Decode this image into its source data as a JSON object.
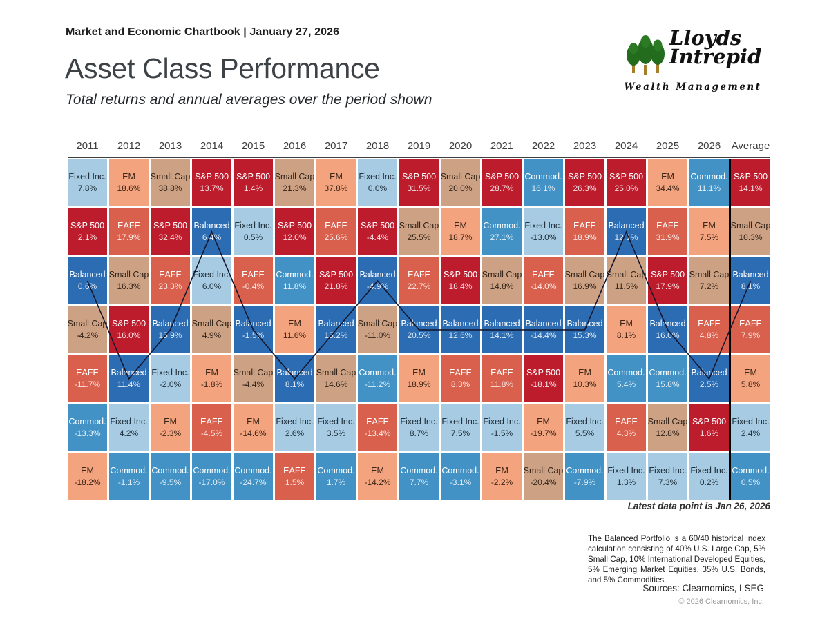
{
  "header": {
    "chartbook": "Market and Economic Chartbook | January 27, 2026"
  },
  "logo": {
    "name_line1": "Lloyds",
    "name_line2": "Intrepid",
    "tagline": "Wealth Management"
  },
  "title": "Asset Class Performance",
  "subtitle": "Total returns and annual averages over the period shown",
  "chart_data": {
    "type": "table",
    "title": "Asset Class Performance",
    "subtitle": "Total returns and annual averages over the period shown",
    "columns": [
      "2011",
      "2012",
      "2013",
      "2014",
      "2015",
      "2016",
      "2017",
      "2018",
      "2019",
      "2020",
      "2021",
      "2022",
      "2023",
      "2024",
      "2025",
      "2026",
      "Average"
    ],
    "highlight_asset": "Balanced",
    "asset_classes": {
      "S&P 500": {
        "bg": "#bd1c2c",
        "text": "light"
      },
      "Small Cap": {
        "bg": "#cda284",
        "text": "dark",
        "fg": "#33241a"
      },
      "EM": {
        "bg": "#f3a47f",
        "text": "dark",
        "fg": "#3c2517"
      },
      "EAFE": {
        "bg": "#d8604d",
        "text": "light"
      },
      "Fixed Inc.": {
        "bg": "#a6cbe2",
        "text": "dark",
        "fg": "#20303c"
      },
      "Commod.": {
        "bg": "#4292c5",
        "text": "light"
      },
      "Balanced": {
        "bg": "#2b6cb3",
        "text": "light"
      }
    },
    "cells": [
      [
        [
          "Fixed Inc.",
          "7.8%"
        ],
        [
          "S&P 500",
          "2.1%"
        ],
        [
          "Balanced",
          "0.6%"
        ],
        [
          "Small Cap",
          "-4.2%"
        ],
        [
          "EAFE",
          "-11.7%"
        ],
        [
          "Commod.",
          "-13.3%"
        ],
        [
          "EM",
          "-18.2%"
        ]
      ],
      [
        [
          "EM",
          "18.6%"
        ],
        [
          "EAFE",
          "17.9%"
        ],
        [
          "Small Cap",
          "16.3%"
        ],
        [
          "S&P 500",
          "16.0%"
        ],
        [
          "Balanced",
          "11.4%"
        ],
        [
          "Fixed Inc.",
          "4.2%"
        ],
        [
          "Commod.",
          "-1.1%"
        ]
      ],
      [
        [
          "Small Cap",
          "38.8%"
        ],
        [
          "S&P 500",
          "32.4%"
        ],
        [
          "EAFE",
          "23.3%"
        ],
        [
          "Balanced",
          "15.9%"
        ],
        [
          "Fixed Inc.",
          "-2.0%"
        ],
        [
          "EM",
          "-2.3%"
        ],
        [
          "Commod.",
          "-9.5%"
        ]
      ],
      [
        [
          "S&P 500",
          "13.7%"
        ],
        [
          "Balanced",
          "6.4%"
        ],
        [
          "Fixed Inc.",
          "6.0%"
        ],
        [
          "Small Cap",
          "4.9%"
        ],
        [
          "EM",
          "-1.8%"
        ],
        [
          "EAFE",
          "-4.5%"
        ],
        [
          "Commod.",
          "-17.0%"
        ]
      ],
      [
        [
          "S&P 500",
          "1.4%"
        ],
        [
          "Fixed Inc.",
          "0.5%"
        ],
        [
          "EAFE",
          "-0.4%"
        ],
        [
          "Balanced",
          "-1.5%"
        ],
        [
          "Small Cap",
          "-4.4%"
        ],
        [
          "EM",
          "-14.6%"
        ],
        [
          "Commod.",
          "-24.7%"
        ]
      ],
      [
        [
          "Small Cap",
          "21.3%"
        ],
        [
          "S&P 500",
          "12.0%"
        ],
        [
          "Commod.",
          "11.8%"
        ],
        [
          "EM",
          "11.6%"
        ],
        [
          "Balanced",
          "8.1%"
        ],
        [
          "Fixed Inc.",
          "2.6%"
        ],
        [
          "EAFE",
          "1.5%"
        ]
      ],
      [
        [
          "EM",
          "37.8%"
        ],
        [
          "EAFE",
          "25.6%"
        ],
        [
          "S&P 500",
          "21.8%"
        ],
        [
          "Balanced",
          "15.2%"
        ],
        [
          "Small Cap",
          "14.6%"
        ],
        [
          "Fixed Inc.",
          "3.5%"
        ],
        [
          "Commod.",
          "1.7%"
        ]
      ],
      [
        [
          "Fixed Inc.",
          "0.0%"
        ],
        [
          "S&P 500",
          "-4.4%"
        ],
        [
          "Balanced",
          "-4.9%"
        ],
        [
          "Small Cap",
          "-11.0%"
        ],
        [
          "Commod.",
          "-11.2%"
        ],
        [
          "EAFE",
          "-13.4%"
        ],
        [
          "EM",
          "-14.2%"
        ]
      ],
      [
        [
          "S&P 500",
          "31.5%"
        ],
        [
          "Small Cap",
          "25.5%"
        ],
        [
          "EAFE",
          "22.7%"
        ],
        [
          "Balanced",
          "20.5%"
        ],
        [
          "EM",
          "18.9%"
        ],
        [
          "Fixed Inc.",
          "8.7%"
        ],
        [
          "Commod.",
          "7.7%"
        ]
      ],
      [
        [
          "Small Cap",
          "20.0%"
        ],
        [
          "EM",
          "18.7%"
        ],
        [
          "S&P 500",
          "18.4%"
        ],
        [
          "Balanced",
          "12.6%"
        ],
        [
          "EAFE",
          "8.3%"
        ],
        [
          "Fixed Inc.",
          "7.5%"
        ],
        [
          "Commod.",
          "-3.1%"
        ]
      ],
      [
        [
          "S&P 500",
          "28.7%"
        ],
        [
          "Commod.",
          "27.1%"
        ],
        [
          "Small Cap",
          "14.8%"
        ],
        [
          "Balanced",
          "14.1%"
        ],
        [
          "EAFE",
          "11.8%"
        ],
        [
          "Fixed Inc.",
          "-1.5%"
        ],
        [
          "EM",
          "-2.2%"
        ]
      ],
      [
        [
          "Commod.",
          "16.1%"
        ],
        [
          "Fixed Inc.",
          "-13.0%"
        ],
        [
          "EAFE",
          "-14.0%"
        ],
        [
          "Balanced",
          "-14.4%"
        ],
        [
          "S&P 500",
          "-18.1%"
        ],
        [
          "EM",
          "-19.7%"
        ],
        [
          "Small Cap",
          "-20.4%"
        ]
      ],
      [
        [
          "S&P 500",
          "26.3%"
        ],
        [
          "EAFE",
          "18.9%"
        ],
        [
          "Small Cap",
          "16.9%"
        ],
        [
          "Balanced",
          "15.3%"
        ],
        [
          "EM",
          "10.3%"
        ],
        [
          "Fixed Inc.",
          "5.5%"
        ],
        [
          "Commod.",
          "-7.9%"
        ]
      ],
      [
        [
          "S&P 500",
          "25.0%"
        ],
        [
          "Balanced",
          "12.1%"
        ],
        [
          "Small Cap",
          "11.5%"
        ],
        [
          "EM",
          "8.1%"
        ],
        [
          "Commod.",
          "5.4%"
        ],
        [
          "EAFE",
          "4.3%"
        ],
        [
          "Fixed Inc.",
          "1.3%"
        ]
      ],
      [
        [
          "EM",
          "34.4%"
        ],
        [
          "EAFE",
          "31.9%"
        ],
        [
          "S&P 500",
          "17.9%"
        ],
        [
          "Balanced",
          "16.0%"
        ],
        [
          "Commod.",
          "15.8%"
        ],
        [
          "Small Cap",
          "12.8%"
        ],
        [
          "Fixed Inc.",
          "7.3%"
        ]
      ],
      [
        [
          "Commod.",
          "11.1%"
        ],
        [
          "EM",
          "7.5%"
        ],
        [
          "Small Cap",
          "7.2%"
        ],
        [
          "EAFE",
          "4.8%"
        ],
        [
          "Balanced",
          "2.5%"
        ],
        [
          "S&P 500",
          "1.6%"
        ],
        [
          "Fixed Inc.",
          "0.2%"
        ]
      ],
      [
        [
          "S&P 500",
          "14.1%"
        ],
        [
          "Small Cap",
          "10.3%"
        ],
        [
          "Balanced",
          "8.1%"
        ],
        [
          "EAFE",
          "7.9%"
        ],
        [
          "EM",
          "5.8%"
        ],
        [
          "Fixed Inc.",
          "2.4%"
        ],
        [
          "Commod.",
          "0.5%"
        ]
      ]
    ]
  },
  "notes": {
    "latest": "Latest data point is Jan 26, 2026",
    "footnote": "The Balanced Portfolio is a 60/40 historical index calculation consisting of 40% U.S. Large Cap, 5% Small Cap, 10% International Developed Equities, 5% Emerging Market Equities, 35% U.S. Bonds, and 5% Commodities.",
    "sources": "Sources: Clearnomics, LSEG",
    "copyright": "© 2026 Clearnomics, Inc."
  }
}
